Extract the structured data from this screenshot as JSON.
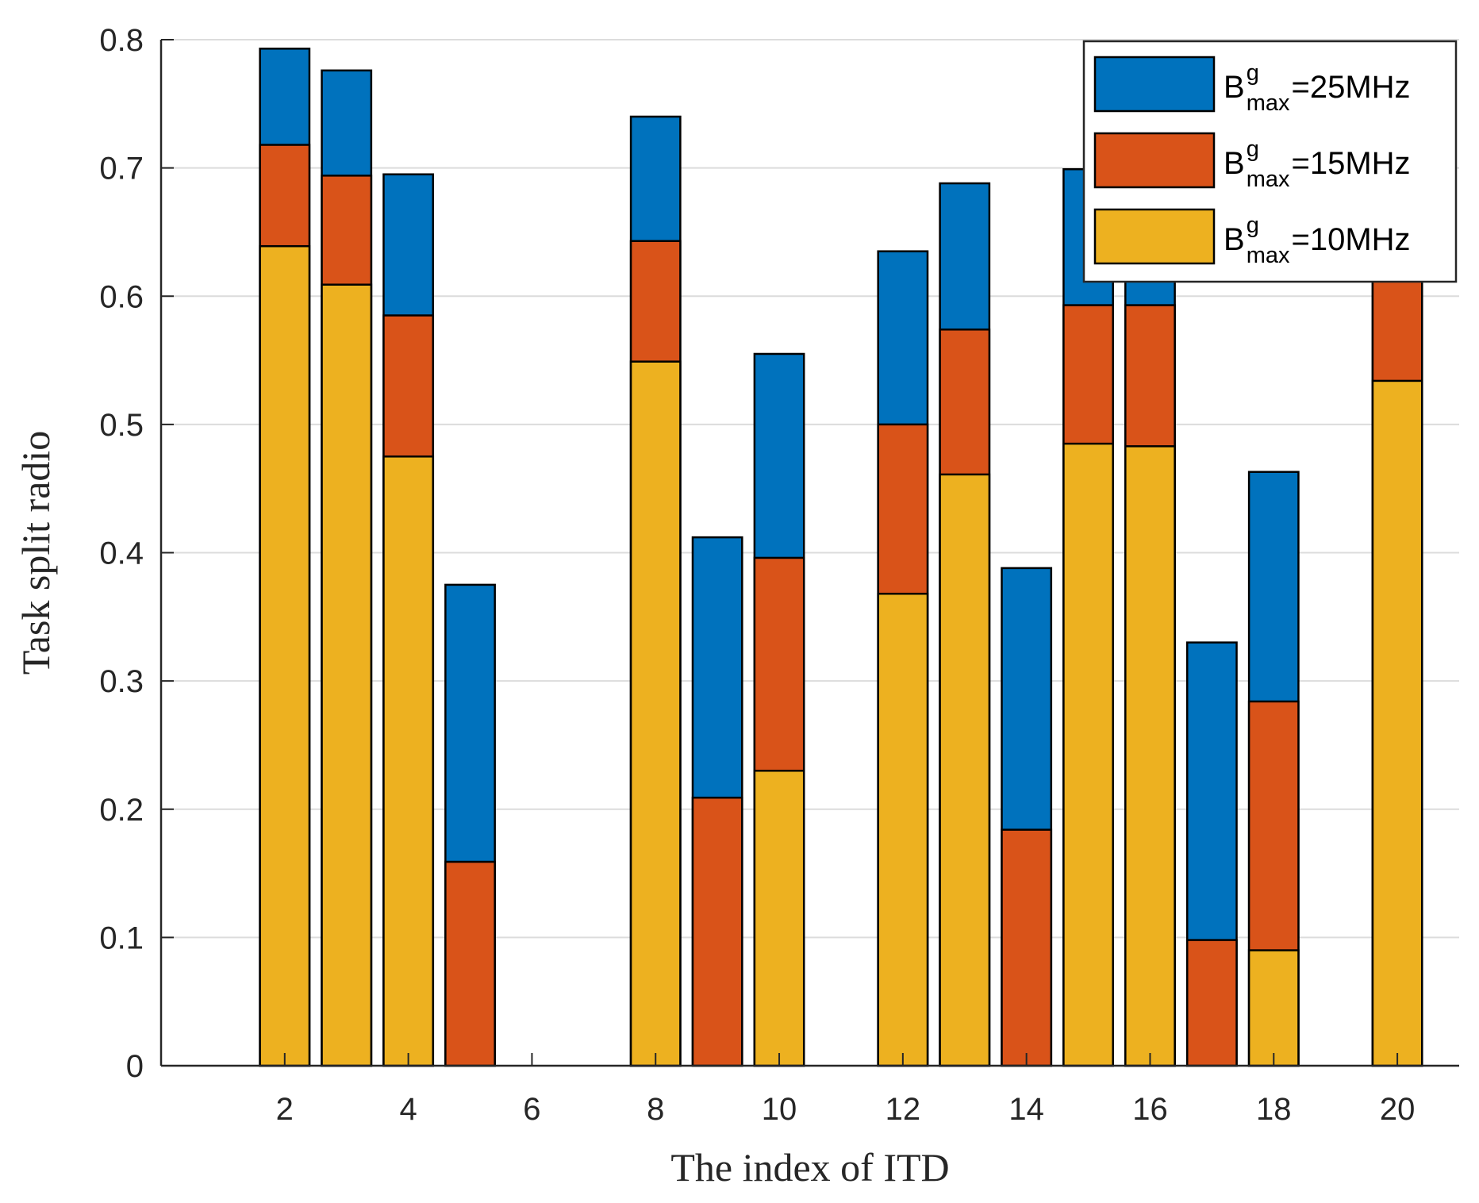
{
  "chart_data": {
    "type": "bar",
    "stacked": false,
    "overlaid": true,
    "title": "",
    "xlabel": "The index of ITD",
    "ylabel": "Task split radio",
    "x": [
      1,
      2,
      3,
      4,
      5,
      6,
      7,
      8,
      9,
      10,
      11,
      12,
      13,
      14,
      15,
      16,
      17,
      18,
      19,
      20
    ],
    "xticks": [
      "2",
      "4",
      "6",
      "8",
      "10",
      "12",
      "14",
      "16",
      "18",
      "20"
    ],
    "yticks": [
      "0",
      "0.1",
      "0.2",
      "0.3",
      "0.4",
      "0.5",
      "0.6",
      "0.7",
      "0.8"
    ],
    "xlim": [
      0,
      21
    ],
    "ylim": [
      0,
      0.8
    ],
    "grid": "horizontal",
    "legend_position": "top-right",
    "series": [
      {
        "name": "B^g_max=25MHz",
        "label_base": "B",
        "label_sup": "g",
        "label_sub": "max",
        "label_tail": "=25MHz",
        "color": "#0072BD",
        "values": [
          0,
          0.793,
          0.776,
          0.695,
          0.375,
          0,
          0,
          0.74,
          0.412,
          0.555,
          0,
          0.635,
          0.688,
          0.388,
          0.699,
          0.66,
          0.33,
          0.463,
          0,
          0.64
        ]
      },
      {
        "name": "B^g_max=15MHz",
        "label_base": "B",
        "label_sup": "g",
        "label_sub": "max",
        "label_tail": "=15MHz",
        "color": "#D95319",
        "values": [
          0,
          0.718,
          0.694,
          0.585,
          0.159,
          0,
          0,
          0.643,
          0.209,
          0.396,
          0,
          0.5,
          0.574,
          0.184,
          0.593,
          0.593,
          0.098,
          0.284,
          0,
          0.62
        ]
      },
      {
        "name": "B^g_max=10MHz",
        "label_base": "B",
        "label_sup": "g",
        "label_sub": "max",
        "label_tail": "=10MHz",
        "color": "#EDB120",
        "values": [
          0,
          0.639,
          0.609,
          0.475,
          0,
          0,
          0,
          0.549,
          0,
          0.23,
          0,
          0.368,
          0.461,
          0,
          0.485,
          0.483,
          0,
          0.09,
          0,
          0.534
        ]
      }
    ]
  }
}
